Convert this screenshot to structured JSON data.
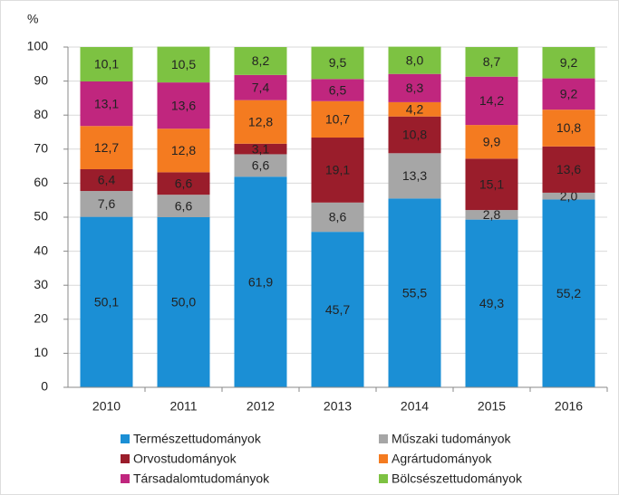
{
  "chart_data": {
    "type": "stacked_bar",
    "y_label": "%",
    "categories": [
      "2010",
      "2011",
      "2012",
      "2013",
      "2014",
      "2015",
      "2016"
    ],
    "series": [
      {
        "name": "Természettudományok",
        "color": "#1b8fd5",
        "values": [
          50.1,
          50.0,
          61.9,
          45.7,
          55.5,
          49.3,
          55.2
        ],
        "value_labels": [
          "50,1",
          "50,0",
          "61,9",
          "45,7",
          "55,5",
          "49,3",
          "55,2"
        ]
      },
      {
        "name": "Műszaki tudományok",
        "color": "#a6a6a6",
        "values": [
          7.6,
          6.6,
          6.6,
          8.6,
          13.3,
          2.8,
          2.0
        ],
        "value_labels": [
          "7,6",
          "6,6",
          "6,6",
          "8,6",
          "13,3",
          "2,8",
          "2,0"
        ]
      },
      {
        "name": "Orvostudományok",
        "color": "#9a1d2b",
        "values": [
          6.4,
          6.6,
          3.1,
          19.1,
          10.8,
          15.1,
          13.6
        ],
        "value_labels": [
          "6,4",
          "6,6",
          "3,1",
          "19,1",
          "10,8",
          "15,1",
          "13,6"
        ]
      },
      {
        "name": "Agrártudományok",
        "color": "#f47b20",
        "values": [
          12.7,
          12.8,
          12.8,
          10.7,
          4.2,
          9.9,
          10.8
        ],
        "value_labels": [
          "12,7",
          "12,8",
          "12,8",
          "10,7",
          "4,2",
          "9,9",
          "10,8"
        ]
      },
      {
        "name": "Társadalomtudományok",
        "color": "#c0267e",
        "values": [
          13.1,
          13.6,
          7.4,
          6.5,
          8.3,
          14.2,
          9.2
        ],
        "value_labels": [
          "13,1",
          "13,6",
          "7,4",
          "6,5",
          "8,3",
          "14,2",
          "9,2"
        ]
      },
      {
        "name": "Bölcsészettudományok",
        "color": "#7dc242",
        "values": [
          10.1,
          10.5,
          8.2,
          9.5,
          8.0,
          8.7,
          9.2
        ],
        "value_labels": [
          "10,1",
          "10,5",
          "8,2",
          "9,5",
          "8,0",
          "8,7",
          "9,2"
        ]
      }
    ],
    "ylim": [
      0,
      100
    ],
    "yticks": [
      0,
      10,
      20,
      30,
      40,
      50,
      60,
      70,
      80,
      90,
      100
    ],
    "grid": true
  }
}
